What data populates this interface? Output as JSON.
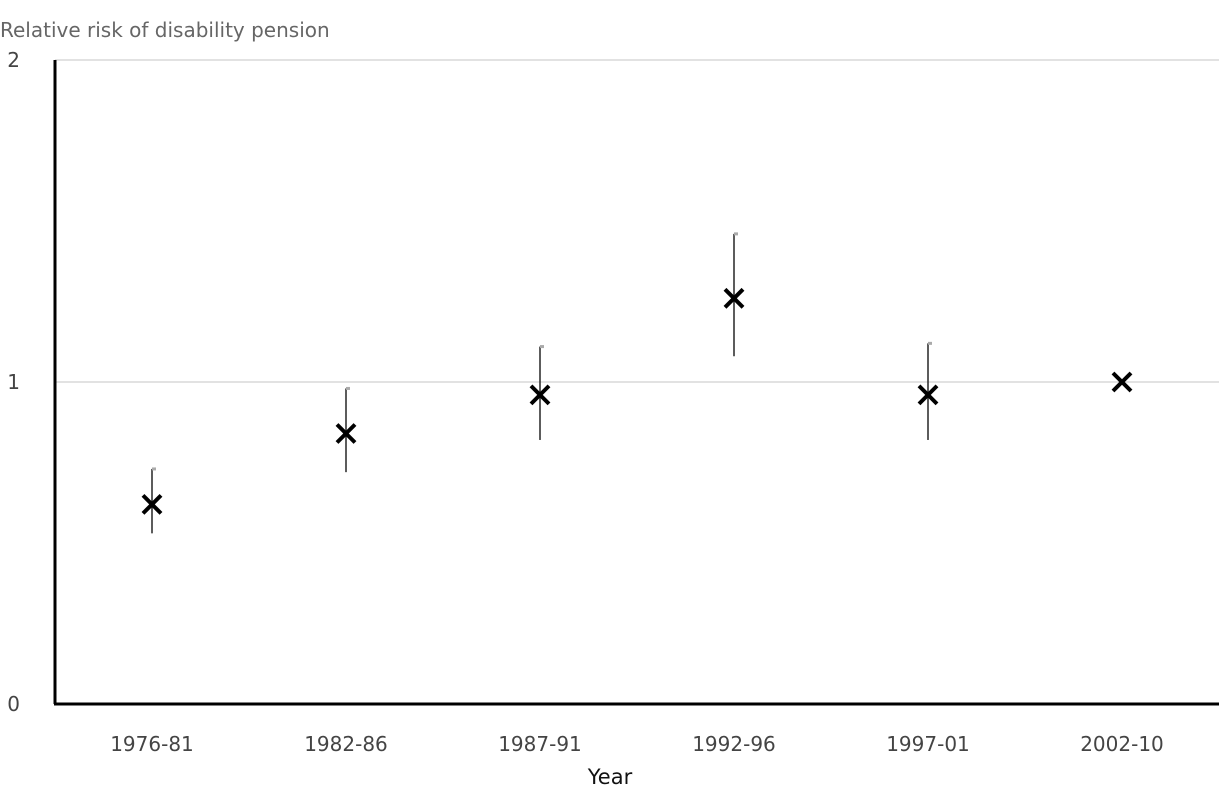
{
  "chart_data": {
    "type": "scatter",
    "ylabel": "Relative risk of disability pension",
    "xlabel": "Year",
    "ylim": [
      0,
      2
    ],
    "yticks": [
      0,
      1,
      2
    ],
    "grid": true,
    "categories": [
      "1976-81",
      "1982-86",
      "1987-91",
      "1992-96",
      "1997-01",
      "2002-10"
    ],
    "series": [
      {
        "marker": "x",
        "values": [
          0.62,
          0.84,
          0.96,
          1.26,
          0.96,
          1.0
        ],
        "lower": [
          0.53,
          0.72,
          0.82,
          1.08,
          0.82,
          null
        ],
        "upper": [
          0.73,
          0.98,
          1.11,
          1.46,
          1.12,
          null
        ]
      }
    ]
  }
}
